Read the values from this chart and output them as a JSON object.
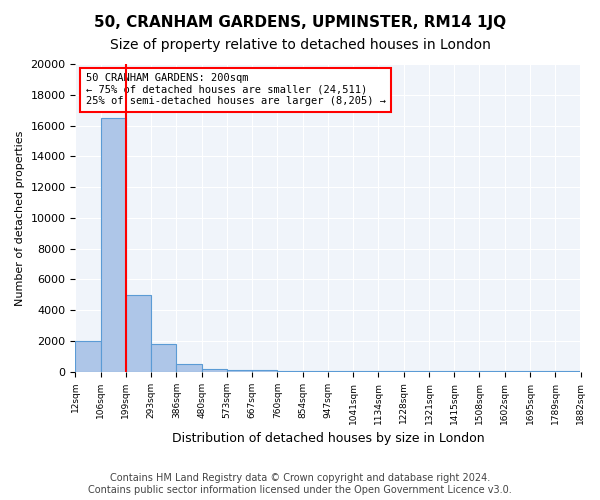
{
  "title": "50, CRANHAM GARDENS, UPMINSTER, RM14 1JQ",
  "subtitle": "Size of property relative to detached houses in London",
  "xlabel": "Distribution of detached houses by size in London",
  "ylabel": "Number of detached properties",
  "bin_labels": [
    "12sqm",
    "106sqm",
    "199sqm",
    "293sqm",
    "386sqm",
    "480sqm",
    "573sqm",
    "667sqm",
    "760sqm",
    "854sqm",
    "947sqm",
    "1041sqm",
    "1134sqm",
    "1228sqm",
    "1321sqm",
    "1415sqm",
    "1508sqm",
    "1602sqm",
    "1695sqm",
    "1789sqm",
    "1882sqm"
  ],
  "bar_heights": [
    2000,
    16500,
    5000,
    1800,
    500,
    200,
    150,
    100,
    75,
    75,
    75,
    50,
    50,
    50,
    50,
    50,
    50,
    50,
    50,
    50
  ],
  "bar_color": "#aec6e8",
  "bar_edge_color": "#5b9bd5",
  "red_line_index": 2,
  "annotation_text": "50 CRANHAM GARDENS: 200sqm\n← 75% of detached houses are smaller (24,511)\n25% of semi-detached houses are larger (8,205) →",
  "annotation_box_color": "white",
  "annotation_edge_color": "red",
  "ylim": [
    0,
    20000
  ],
  "yticks": [
    0,
    2000,
    4000,
    6000,
    8000,
    10000,
    12000,
    14000,
    16000,
    18000,
    20000
  ],
  "background_color": "#f0f4fa",
  "grid_color": "white",
  "footer_line1": "Contains HM Land Registry data © Crown copyright and database right 2024.",
  "footer_line2": "Contains public sector information licensed under the Open Government Licence v3.0.",
  "title_fontsize": 11,
  "subtitle_fontsize": 10,
  "xlabel_fontsize": 9,
  "ylabel_fontsize": 8,
  "annotation_fontsize": 7.5,
  "footer_fontsize": 7
}
